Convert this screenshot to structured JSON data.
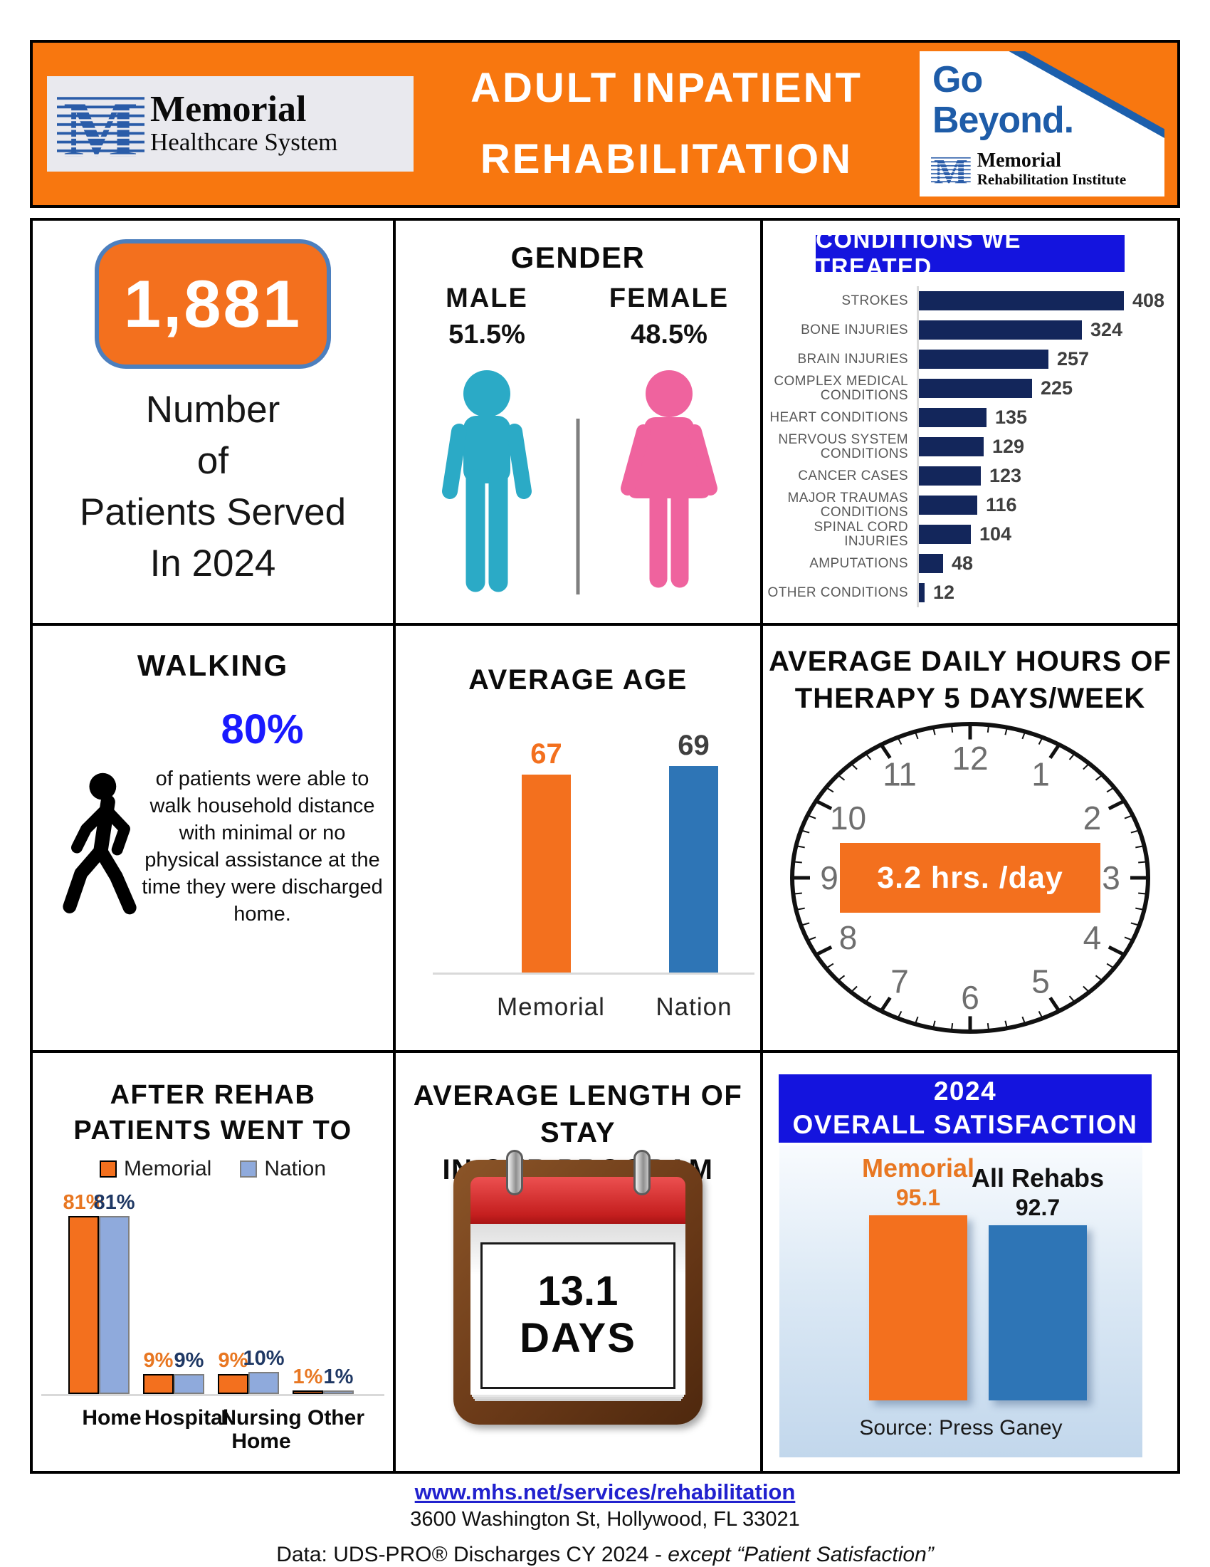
{
  "colors": {
    "orange": "#F3701E",
    "orange_bright": "#F8770F",
    "blue_banner": "#1414DE",
    "navy": "#13265B",
    "teal": "#2BAAC6",
    "pink": "#EF639E",
    "accent_blue": "#1A1AFF",
    "steel_blue": "#2E75B6",
    "periwinkle": "#8FAADC",
    "navy_label": "#1F3864",
    "orange_label": "#E87722",
    "gray_label": "#595959",
    "dark_label": "#3F3F3F",
    "link_blue": "#2121CE",
    "box_border": "#4C7FBE",
    "logo_blue": "#2A5CA8"
  },
  "header": {
    "title_line1": "ADULT INPATIENT",
    "title_line2": "REHABILITATION",
    "mhs_logo": {
      "m": "M",
      "line1": "Memorial",
      "line2": "Healthcare System"
    },
    "go_beyond": {
      "line1": "Go",
      "line2": "Beyond.",
      "m": "M",
      "org_line1": "Memorial",
      "org_line2": "Rehabilitation Institute"
    }
  },
  "panels": {
    "patients": {
      "count": "1,881",
      "caption_lines": [
        "Number",
        "of",
        "Patients Served",
        "In 2024"
      ]
    },
    "gender": {
      "title": "GENDER",
      "male_label": "MALE",
      "male_value": "51.5%",
      "female_label": "FEMALE",
      "female_value": "48.5%"
    },
    "conditions": {
      "banner": "CONDITIONS WE TREATED"
    },
    "walking": {
      "title": "WALKING",
      "stat": "80%",
      "description": "of patients were able to walk household distance with minimal or no physical assistance at the time they were discharged home."
    },
    "average_age": {
      "title": "AVERAGE AGE"
    },
    "therapy": {
      "title_line1": "AVERAGE DAILY HOURS OF",
      "title_line2": "THERAPY 5 DAYS/WEEK",
      "badge": "3.2 hrs. /day"
    },
    "after_rehab": {
      "title_line1": "AFTER REHAB",
      "title_line2": "PATIENTS WENT TO"
    },
    "length_of_stay": {
      "title_line1": "AVERAGE LENGTH OF STAY",
      "title_line2": "IN OUR PROGRAM",
      "value": "13.1",
      "unit": "DAYS"
    },
    "satisfaction": {
      "banner_line1": "2024",
      "banner_line2": "OVERALL SATISFACTION",
      "source": "Source: Press Ganey"
    }
  },
  "chart_data": [
    {
      "id": "conditions",
      "type": "bar",
      "orientation": "horizontal",
      "title": "CONDITIONS WE TREATED",
      "categories": [
        "STROKES",
        "BONE INJURIES",
        "BRAIN INJURIES",
        "COMPLEX MEDICAL CONDITIONS",
        "HEART CONDITIONS",
        "NERVOUS SYSTEM CONDITIONS",
        "CANCER CASES",
        "MAJOR TRAUMAS CONDITIONS",
        "SPINAL CORD INJURIES",
        "AMPUTATIONS",
        "OTHER CONDITIONS"
      ],
      "values": [
        408,
        324,
        257,
        225,
        135,
        129,
        123,
        116,
        104,
        48,
        12
      ],
      "xlim": [
        0,
        450
      ],
      "grid": false,
      "bar_color": "#13265B"
    },
    {
      "id": "average_age",
      "type": "bar",
      "title": "AVERAGE AGE",
      "categories": [
        "Memorial",
        "Nation"
      ],
      "values": [
        67,
        69
      ],
      "bar_colors": [
        "#F3701E",
        "#2E75B6"
      ],
      "label_colors": [
        "#F3701E",
        "#3F3F3F"
      ],
      "ylim": [
        20,
        70
      ],
      "grid": false
    },
    {
      "id": "after_rehab",
      "type": "bar",
      "title": "AFTER REHAB PATIENTS WENT TO",
      "categories": [
        "Home",
        "Hospital",
        "Nursing Home",
        "Other"
      ],
      "series": [
        {
          "name": "Memorial",
          "values": [
            81,
            9,
            9,
            1
          ],
          "labels": [
            "81%",
            "9%",
            "9%",
            "1%"
          ],
          "color": "#F3701E"
        },
        {
          "name": "Nation",
          "values": [
            81,
            9,
            10,
            1
          ],
          "labels": [
            "81%",
            "9%",
            "10%",
            "1%"
          ],
          "color": "#8FAADC"
        }
      ],
      "ylim": [
        0,
        100
      ],
      "legend_position": "top",
      "value_suffix": "%"
    },
    {
      "id": "satisfaction",
      "type": "bar",
      "title": "2024 OVERALL SATISFACTION",
      "categories": [
        "Memorial",
        "All Rehabs"
      ],
      "values": [
        95.1,
        92.7
      ],
      "bar_colors": [
        "#F3701E",
        "#2E75B6"
      ],
      "label_colors": [
        "#E87722",
        "#111111"
      ],
      "ylim": [
        50,
        100
      ],
      "source": "Source: Press Ganey"
    },
    {
      "id": "therapy_hours",
      "type": "other",
      "title": "AVERAGE DAILY HOURS OF THERAPY 5 DAYS/WEEK",
      "value": 3.2,
      "unit": "hrs./day",
      "clock_numbers": [
        1,
        2,
        3,
        4,
        5,
        6,
        7,
        8,
        9,
        10,
        11,
        12
      ]
    },
    {
      "id": "gender",
      "type": "pie",
      "title": "GENDER",
      "categories": [
        "MALE",
        "FEMALE"
      ],
      "values": [
        51.5,
        48.5
      ],
      "unit": "%"
    }
  ],
  "footer": {
    "link": "www.mhs.net/services/rehabilitation",
    "address": "3600 Washington St, Hollywood, FL 33021",
    "data_prefix": "Data: UDS-PRO® Discharges CY 2024 - ",
    "data_italic": "except “Patient Satisfaction”"
  }
}
